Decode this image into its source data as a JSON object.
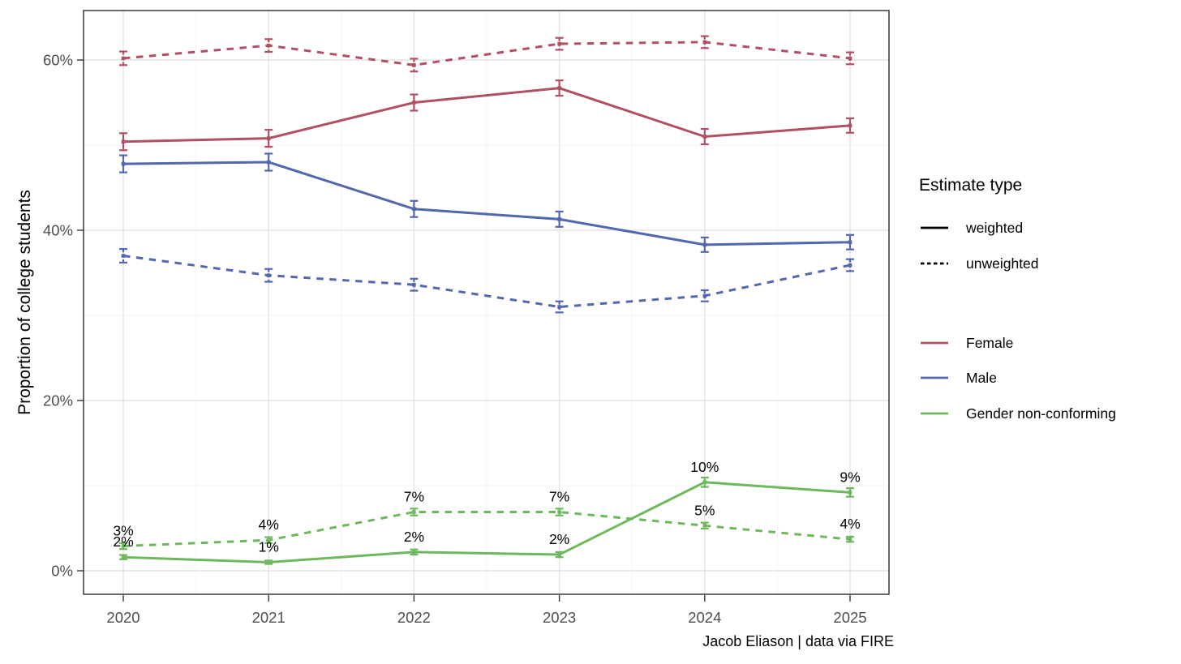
{
  "chart_data": {
    "type": "line",
    "title": "",
    "xlabel": "",
    "ylabel": "Proportion of college students",
    "caption": "Jacob Eliason | data via FIRE",
    "x": [
      2020,
      2021,
      2022,
      2023,
      2024,
      2025
    ],
    "x_tick_labels": [
      "2020",
      "2021",
      "2022",
      "2023",
      "2024",
      "2025"
    ],
    "y_ticks": [
      {
        "value": 0,
        "label": "0%"
      },
      {
        "value": 20,
        "label": "20%"
      },
      {
        "value": 40,
        "label": "40%"
      },
      {
        "value": 60,
        "label": "60%"
      }
    ],
    "y_minor_ticks": [
      10,
      30,
      50
    ],
    "ylim": [
      -2.8,
      65.8
    ],
    "unit": "percent of college students",
    "grid": true,
    "legend_position": "right",
    "series": [
      {
        "id": "female-unweighted",
        "name": "Female",
        "estimate": "unweighted",
        "color": "#B05064",
        "dashed": true,
        "values": [
          60.2,
          61.7,
          59.4,
          61.9,
          62.1,
          60.2
        ],
        "errors": [
          0.8,
          0.75,
          0.75,
          0.7,
          0.7,
          0.7
        ]
      },
      {
        "id": "female-weighted",
        "name": "Female",
        "estimate": "weighted",
        "color": "#B05064",
        "dashed": false,
        "values": [
          50.4,
          50.8,
          55.0,
          56.7,
          51.0,
          52.3
        ],
        "errors": [
          1.0,
          1.0,
          0.95,
          0.9,
          0.9,
          0.85
        ]
      },
      {
        "id": "male-unweighted",
        "name": "Male",
        "estimate": "unweighted",
        "color": "#5267AE",
        "dashed": true,
        "values": [
          37.0,
          34.7,
          33.6,
          31.0,
          32.3,
          35.9
        ],
        "errors": [
          0.8,
          0.75,
          0.7,
          0.65,
          0.65,
          0.7
        ]
      },
      {
        "id": "male-weighted",
        "name": "Male",
        "estimate": "weighted",
        "color": "#5267AE",
        "dashed": false,
        "values": [
          47.8,
          48.0,
          42.5,
          41.3,
          38.3,
          38.6
        ],
        "errors": [
          1.0,
          1.0,
          0.95,
          0.9,
          0.85,
          0.85
        ]
      },
      {
        "id": "gnc-unweighted",
        "name": "Gender non-conforming",
        "estimate": "unweighted",
        "color": "#6FB75F",
        "dashed": true,
        "values": [
          2.9,
          3.6,
          6.9,
          6.9,
          5.3,
          3.7
        ],
        "errors": [
          0.35,
          0.35,
          0.4,
          0.4,
          0.35,
          0.3
        ],
        "point_labels": [
          "3%",
          "4%",
          "7%",
          "7%",
          "5%",
          "4%"
        ]
      },
      {
        "id": "gnc-weighted",
        "name": "Gender non-conforming",
        "estimate": "weighted",
        "color": "#6FB75F",
        "dashed": false,
        "values": [
          1.6,
          1.0,
          2.2,
          1.9,
          10.4,
          9.2
        ],
        "errors": [
          0.25,
          0.2,
          0.3,
          0.3,
          0.55,
          0.5
        ],
        "point_labels": [
          "2%",
          "1%",
          "2%",
          "2%",
          "10%",
          "9%"
        ]
      }
    ],
    "legend": {
      "linetype": {
        "title": "Estimate type",
        "items": [
          {
            "label": "weighted",
            "dashed": false
          },
          {
            "label": "unweighted",
            "dashed": true
          }
        ]
      },
      "color": {
        "items": [
          {
            "label": "Female",
            "color": "#B05064"
          },
          {
            "label": "Male",
            "color": "#5267AE"
          },
          {
            "label": "Gender non-conforming",
            "color": "#6FB75F"
          }
        ]
      }
    },
    "colors": {
      "axis_text": "#4D4D4D",
      "grid_major": "#E4E4E4",
      "grid_minor": "#F2F2F2",
      "panel_border": "#2B2B2B",
      "annotation_text": "#000000",
      "background": "#FFFFFF"
    }
  }
}
